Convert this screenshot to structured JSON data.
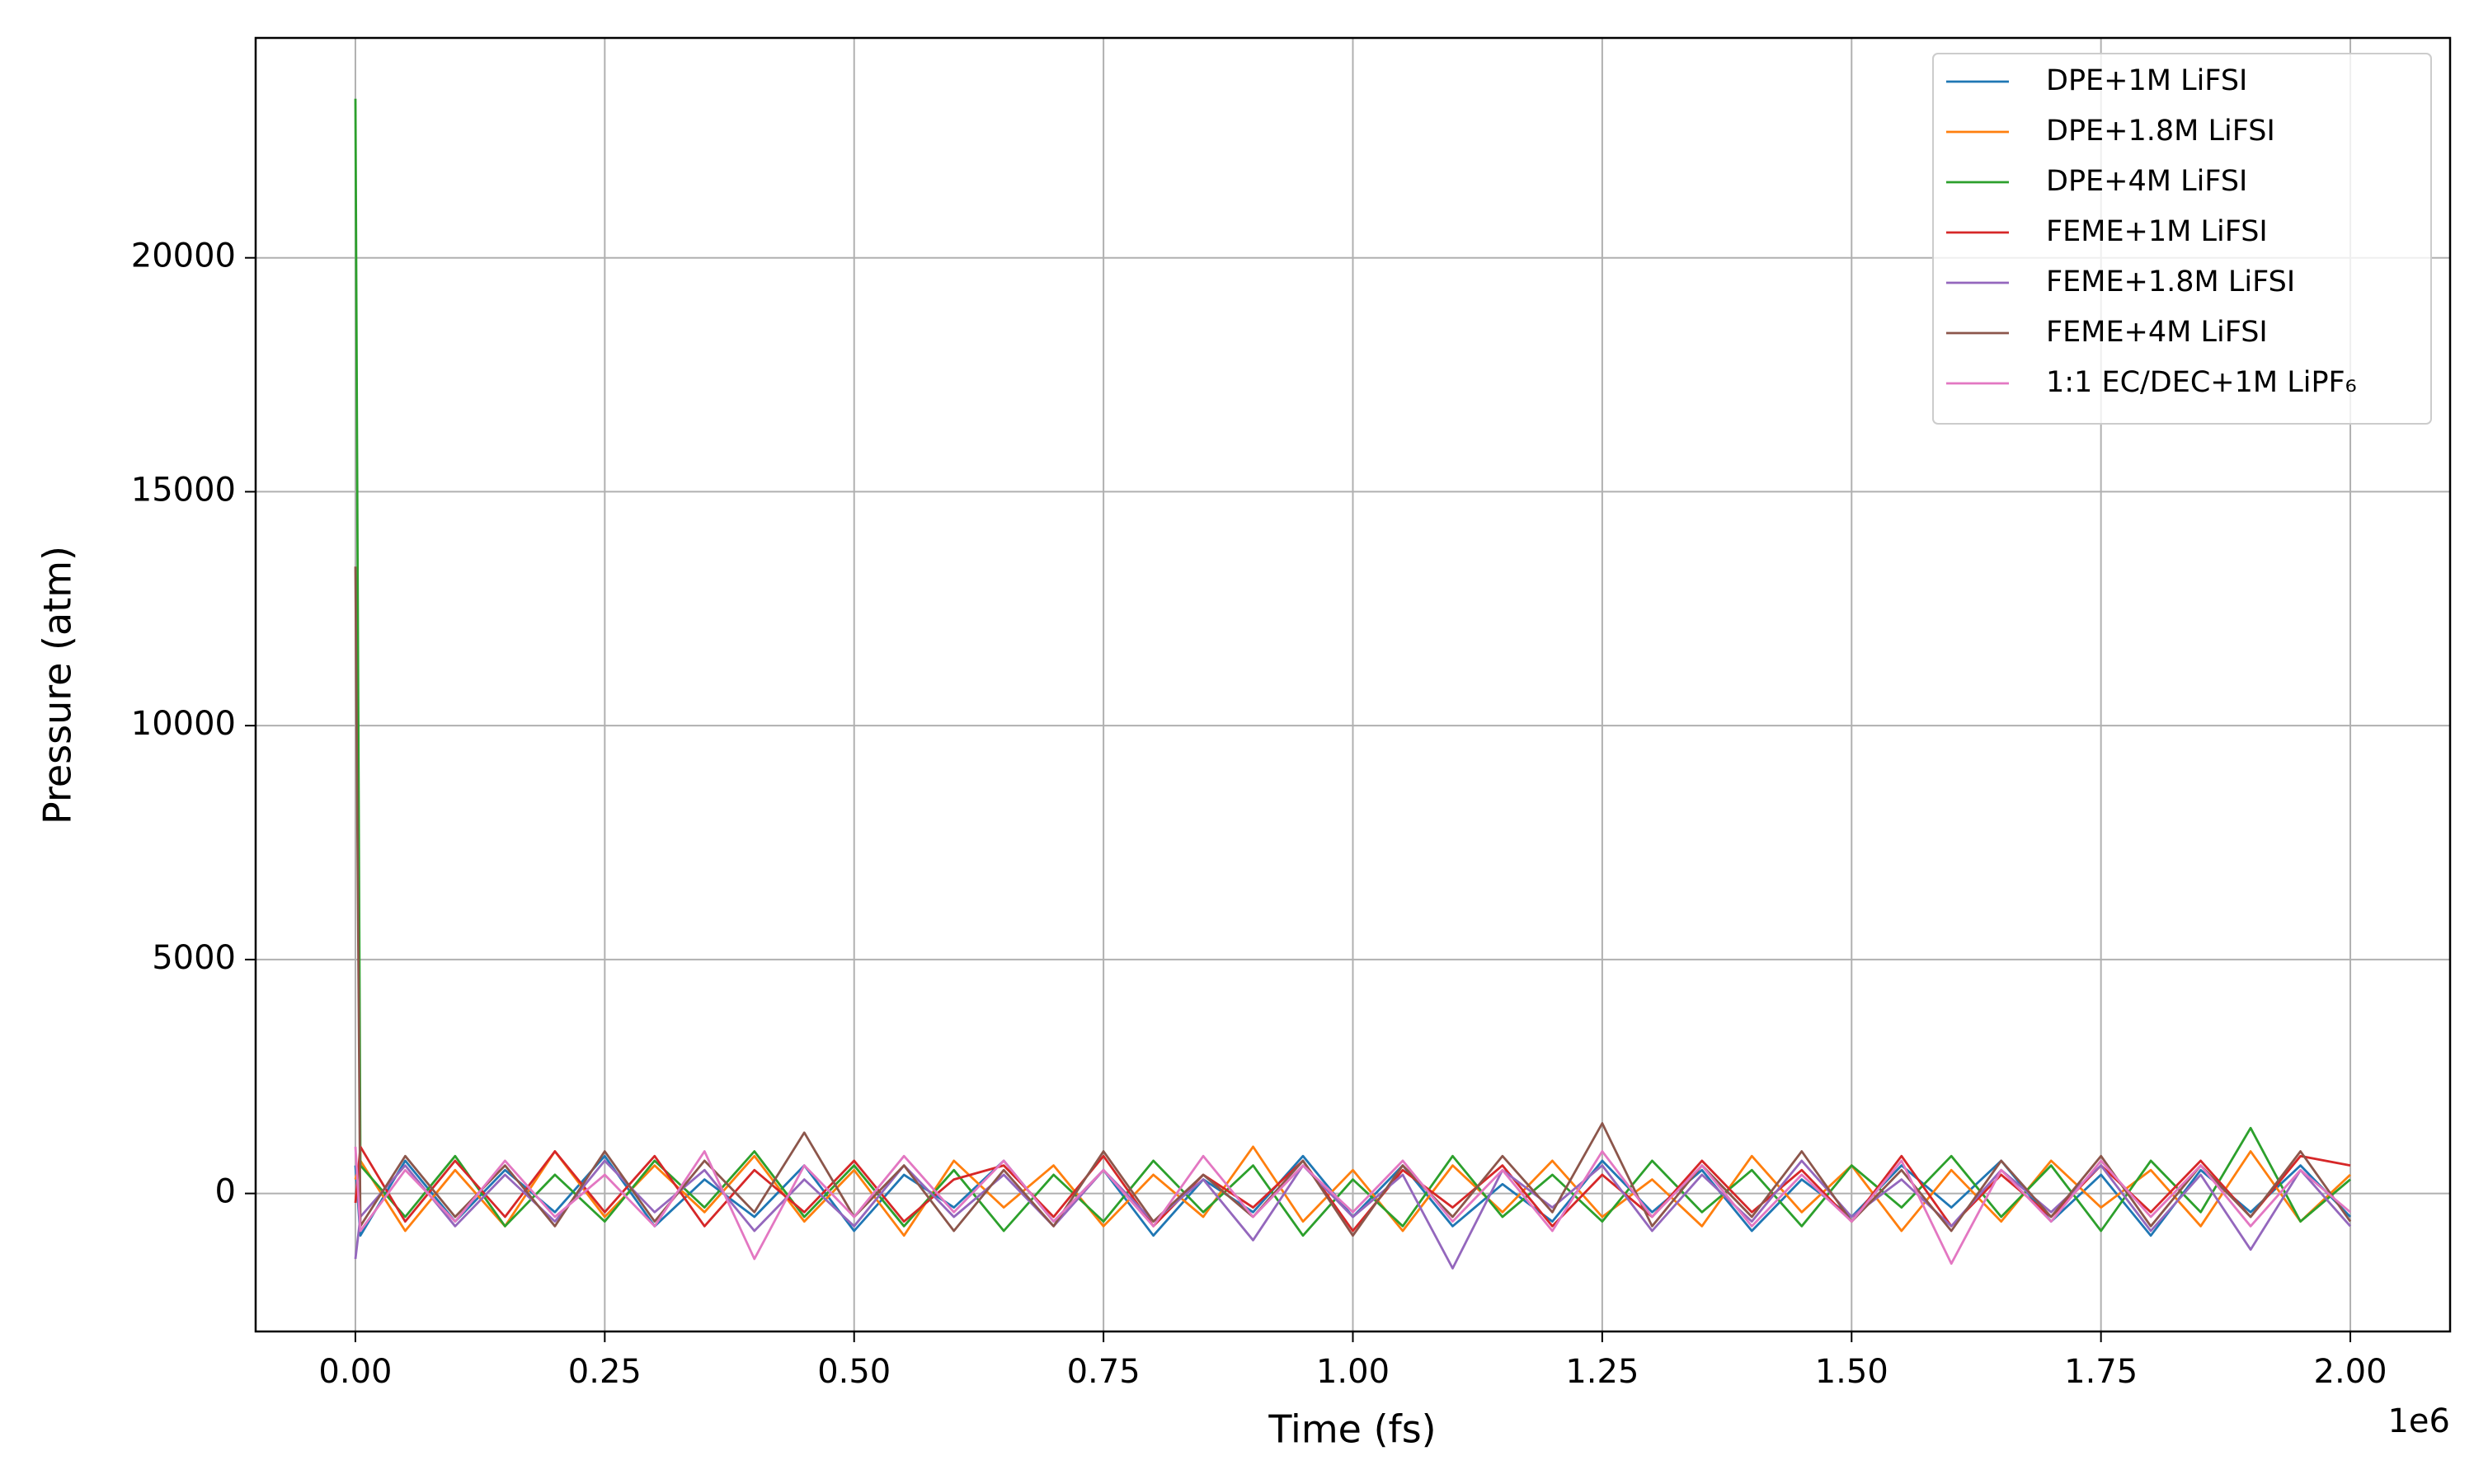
{
  "chart_data": {
    "type": "line",
    "x_label": "Time (fs)",
    "y_label": "Pressure (atm)",
    "x_offset_label": "1e6",
    "x": [
      0,
      5000,
      50000,
      100000,
      150000,
      200000,
      250000,
      300000,
      350000,
      400000,
      450000,
      500000,
      550000,
      600000,
      650000,
      700000,
      750000,
      800000,
      850000,
      900000,
      950000,
      1000000,
      1050000,
      1100000,
      1150000,
      1200000,
      1250000,
      1300000,
      1350000,
      1400000,
      1450000,
      1500000,
      1550000,
      1600000,
      1650000,
      1700000,
      1750000,
      1800000,
      1850000,
      1900000,
      1950000,
      2000000
    ],
    "series": [
      {
        "name": "DPE+1M LiFSI",
        "color": "#1f77b4",
        "values": [
          600,
          -900,
          700,
          -600,
          500,
          -400,
          800,
          -700,
          300,
          -500,
          600,
          -800,
          400,
          -300,
          700,
          -600,
          500,
          -900,
          300,
          -400,
          800,
          -500,
          600,
          -700,
          200,
          -600,
          700,
          -400,
          500,
          -800,
          300,
          -500,
          600,
          -300,
          700,
          -600,
          400,
          -900,
          500,
          -400,
          600,
          -500
        ]
      },
      {
        "name": "DPE+1.8M LiFSI",
        "color": "#ff7f0e",
        "values": [
          300,
          700,
          -800,
          500,
          -700,
          900,
          -500,
          600,
          -400,
          800,
          -600,
          500,
          -900,
          700,
          -300,
          600,
          -700,
          400,
          -500,
          1000,
          -600,
          500,
          -800,
          600,
          -400,
          700,
          -500,
          300,
          -700,
          800,
          -400,
          600,
          -800,
          500,
          -600,
          700,
          -300,
          500,
          -700,
          900,
          -600,
          400
        ]
      },
      {
        "name": "DPE+4M LiFSI",
        "color": "#2ca02c",
        "values": [
          23400,
          600,
          -500,
          800,
          -700,
          400,
          -600,
          700,
          -300,
          900,
          -500,
          600,
          -700,
          500,
          -800,
          400,
          -600,
          700,
          -400,
          600,
          -900,
          300,
          -700,
          800,
          -500,
          400,
          -600,
          700,
          -400,
          500,
          -700,
          600,
          -300,
          800,
          -500,
          600,
          -800,
          700,
          -400,
          1400,
          -600,
          300
        ]
      },
      {
        "name": "FEME+1M LiFSI",
        "color": "#d62728",
        "values": [
          -200,
          1000,
          -600,
          700,
          -500,
          900,
          -400,
          800,
          -700,
          500,
          -400,
          700,
          -600,
          300,
          600,
          -500,
          800,
          -700,
          400,
          -300,
          700,
          -800,
          500,
          -300,
          600,
          -700,
          400,
          -500,
          700,
          -400,
          500,
          -600,
          800,
          -700,
          400,
          -500,
          600,
          -400,
          700,
          -500,
          800,
          600
        ]
      },
      {
        "name": "FEME+1.8M LiFSI",
        "color": "#9467bd",
        "values": [
          -1400,
          -500,
          600,
          -700,
          400,
          -600,
          700,
          -400,
          500,
          -800,
          300,
          -700,
          600,
          -500,
          400,
          -700,
          500,
          -600,
          300,
          -1000,
          600,
          -500,
          400,
          -1600,
          500,
          -300,
          600,
          -800,
          400,
          -600,
          700,
          -500,
          300,
          -700,
          500,
          -400,
          600,
          -800,
          400,
          -1200,
          500,
          -700
        ]
      },
      {
        "name": "FEME+4M LiFSI",
        "color": "#8c564b",
        "values": [
          13400,
          -700,
          800,
          -500,
          600,
          -700,
          900,
          -600,
          700,
          -400,
          1300,
          -500,
          600,
          -800,
          500,
          -700,
          900,
          -600,
          400,
          -500,
          700,
          -900,
          600,
          -500,
          800,
          -400,
          1500,
          -700,
          600,
          -500,
          900,
          -600,
          500,
          -800,
          700,
          -500,
          800,
          -700,
          600,
          -500,
          900,
          -600
        ]
      },
      {
        "name": "1:1 EC/DEC+1M LiPF₆",
        "color": "#e377c2",
        "values": [
          1000,
          -800,
          500,
          -600,
          700,
          -500,
          400,
          -700,
          900,
          -1400,
          600,
          -500,
          800,
          -400,
          700,
          -600,
          500,
          -700,
          800,
          -500,
          600,
          -400,
          700,
          -600,
          500,
          -800,
          900,
          -500,
          600,
          -700,
          400,
          -600,
          700,
          -1500,
          500,
          -600,
          700,
          -500,
          600,
          -700,
          500,
          -400
        ]
      }
    ],
    "xlim": [
      -100000,
      2100000
    ],
    "xticks": [
      {
        "value": 0,
        "label": "0.00"
      },
      {
        "value": 250000,
        "label": "0.25"
      },
      {
        "value": 500000,
        "label": "0.50"
      },
      {
        "value": 750000,
        "label": "0.75"
      },
      {
        "value": 1000000,
        "label": "1.00"
      },
      {
        "value": 1250000,
        "label": "1.25"
      },
      {
        "value": 1500000,
        "label": "1.50"
      },
      {
        "value": 1750000,
        "label": "1.75"
      },
      {
        "value": 2000000,
        "label": "2.00"
      }
    ],
    "ylim": [
      -2950,
      24700
    ],
    "yticks": [
      0,
      5000,
      10000,
      15000,
      20000
    ],
    "grid": true,
    "legend": "upper right"
  }
}
